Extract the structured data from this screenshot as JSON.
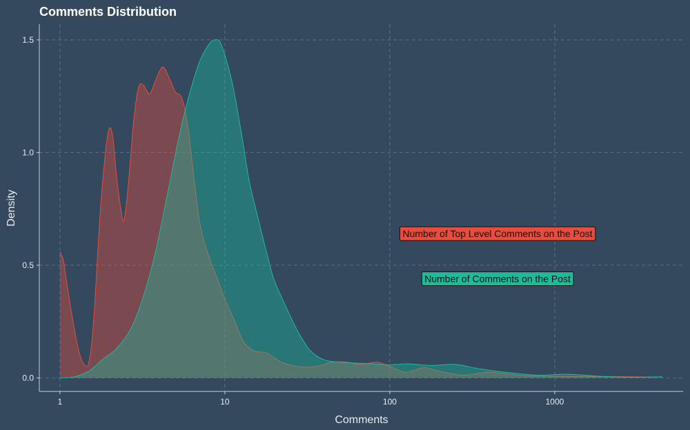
{
  "chart_data": {
    "type": "area",
    "title": "Comments Distribution",
    "xlabel": "Comments",
    "ylabel": "Density",
    "x_scale": "log10",
    "xlim": [
      0.75,
      6000
    ],
    "ylim": [
      -0.06,
      1.57
    ],
    "x_ticks": [
      1,
      10,
      100,
      1000
    ],
    "x_tick_labels": [
      "1",
      "10",
      "100",
      "1000"
    ],
    "y_ticks": [
      0.0,
      0.5,
      1.0,
      1.5
    ],
    "y_tick_labels": [
      "0.0",
      "0.5",
      "1.0",
      "1.5"
    ],
    "grid": true,
    "legend": "none",
    "series": [
      {
        "name": "Number of Top Level Comments on the Post",
        "color": "#e74c3c",
        "fill": "#e74c3c",
        "points": [
          [
            1.0,
            0.56
          ],
          [
            1.05,
            0.52
          ],
          [
            1.1,
            0.42
          ],
          [
            1.2,
            0.25
          ],
          [
            1.3,
            0.12
          ],
          [
            1.4,
            0.06
          ],
          [
            1.5,
            0.07
          ],
          [
            1.6,
            0.25
          ],
          [
            1.75,
            0.72
          ],
          [
            1.9,
            1.02
          ],
          [
            2.0,
            1.11
          ],
          [
            2.1,
            1.06
          ],
          [
            2.2,
            0.9
          ],
          [
            2.35,
            0.74
          ],
          [
            2.45,
            0.7
          ],
          [
            2.6,
            0.86
          ],
          [
            2.8,
            1.14
          ],
          [
            3.0,
            1.29
          ],
          [
            3.2,
            1.3
          ],
          [
            3.5,
            1.26
          ],
          [
            3.8,
            1.32
          ],
          [
            4.2,
            1.38
          ],
          [
            4.6,
            1.33
          ],
          [
            5.0,
            1.27
          ],
          [
            5.5,
            1.24
          ],
          [
            6.0,
            1.1
          ],
          [
            7.0,
            0.7
          ],
          [
            8.0,
            0.54
          ],
          [
            9.0,
            0.44
          ],
          [
            10.0,
            0.35
          ],
          [
            11.5,
            0.25
          ],
          [
            13.0,
            0.16
          ],
          [
            15.0,
            0.12
          ],
          [
            18.0,
            0.11
          ],
          [
            22.0,
            0.07
          ],
          [
            28.0,
            0.05
          ],
          [
            35.0,
            0.05
          ],
          [
            45.0,
            0.07
          ],
          [
            55.0,
            0.07
          ],
          [
            65.0,
            0.06
          ],
          [
            75.0,
            0.065
          ],
          [
            85.0,
            0.07
          ],
          [
            100.0,
            0.05
          ],
          [
            125.0,
            0.025
          ],
          [
            160.0,
            0.045
          ],
          [
            200.0,
            0.03
          ],
          [
            280.0,
            0.012
          ],
          [
            400.0,
            0.025
          ],
          [
            600.0,
            0.012
          ],
          [
            1000.0,
            0.006
          ],
          [
            1500.0,
            0.006
          ],
          [
            2000.0,
            0.006
          ],
          [
            4000.0,
            0.004
          ]
        ]
      },
      {
        "name": "Number of Comments on the Post",
        "color": "#1abc9c",
        "fill": "#1abc9c",
        "points": [
          [
            1.0,
            0.0
          ],
          [
            1.2,
            0.003
          ],
          [
            1.5,
            0.03
          ],
          [
            1.8,
            0.08
          ],
          [
            2.2,
            0.13
          ],
          [
            2.7,
            0.22
          ],
          [
            3.2,
            0.36
          ],
          [
            3.8,
            0.56
          ],
          [
            4.5,
            0.82
          ],
          [
            5.2,
            1.05
          ],
          [
            6.0,
            1.24
          ],
          [
            7.0,
            1.4
          ],
          [
            8.0,
            1.48
          ],
          [
            8.7,
            1.5
          ],
          [
            9.5,
            1.48
          ],
          [
            11.0,
            1.32
          ],
          [
            12.5,
            1.1
          ],
          [
            14.0,
            0.88
          ],
          [
            16.0,
            0.7
          ],
          [
            18.0,
            0.55
          ],
          [
            20.0,
            0.43
          ],
          [
            24.0,
            0.3
          ],
          [
            28.0,
            0.2
          ],
          [
            33.0,
            0.12
          ],
          [
            40.0,
            0.08
          ],
          [
            50.0,
            0.07
          ],
          [
            65.0,
            0.065
          ],
          [
            80.0,
            0.062
          ],
          [
            100.0,
            0.058
          ],
          [
            130.0,
            0.062
          ],
          [
            180.0,
            0.055
          ],
          [
            250.0,
            0.06
          ],
          [
            350.0,
            0.04
          ],
          [
            500.0,
            0.025
          ],
          [
            800.0,
            0.012
          ],
          [
            1200.0,
            0.016
          ],
          [
            2000.0,
            0.006
          ],
          [
            3000.0,
            0.003
          ],
          [
            4500.0,
            0.005
          ]
        ]
      }
    ],
    "annotations": [
      {
        "text": "Number of Top Level Comments on the Post",
        "x": 450,
        "y": 0.64,
        "color": "#e74c3c"
      },
      {
        "text": "Number of Comments on the Post",
        "x": 450,
        "y": 0.44,
        "color": "#1abc9c"
      }
    ]
  }
}
